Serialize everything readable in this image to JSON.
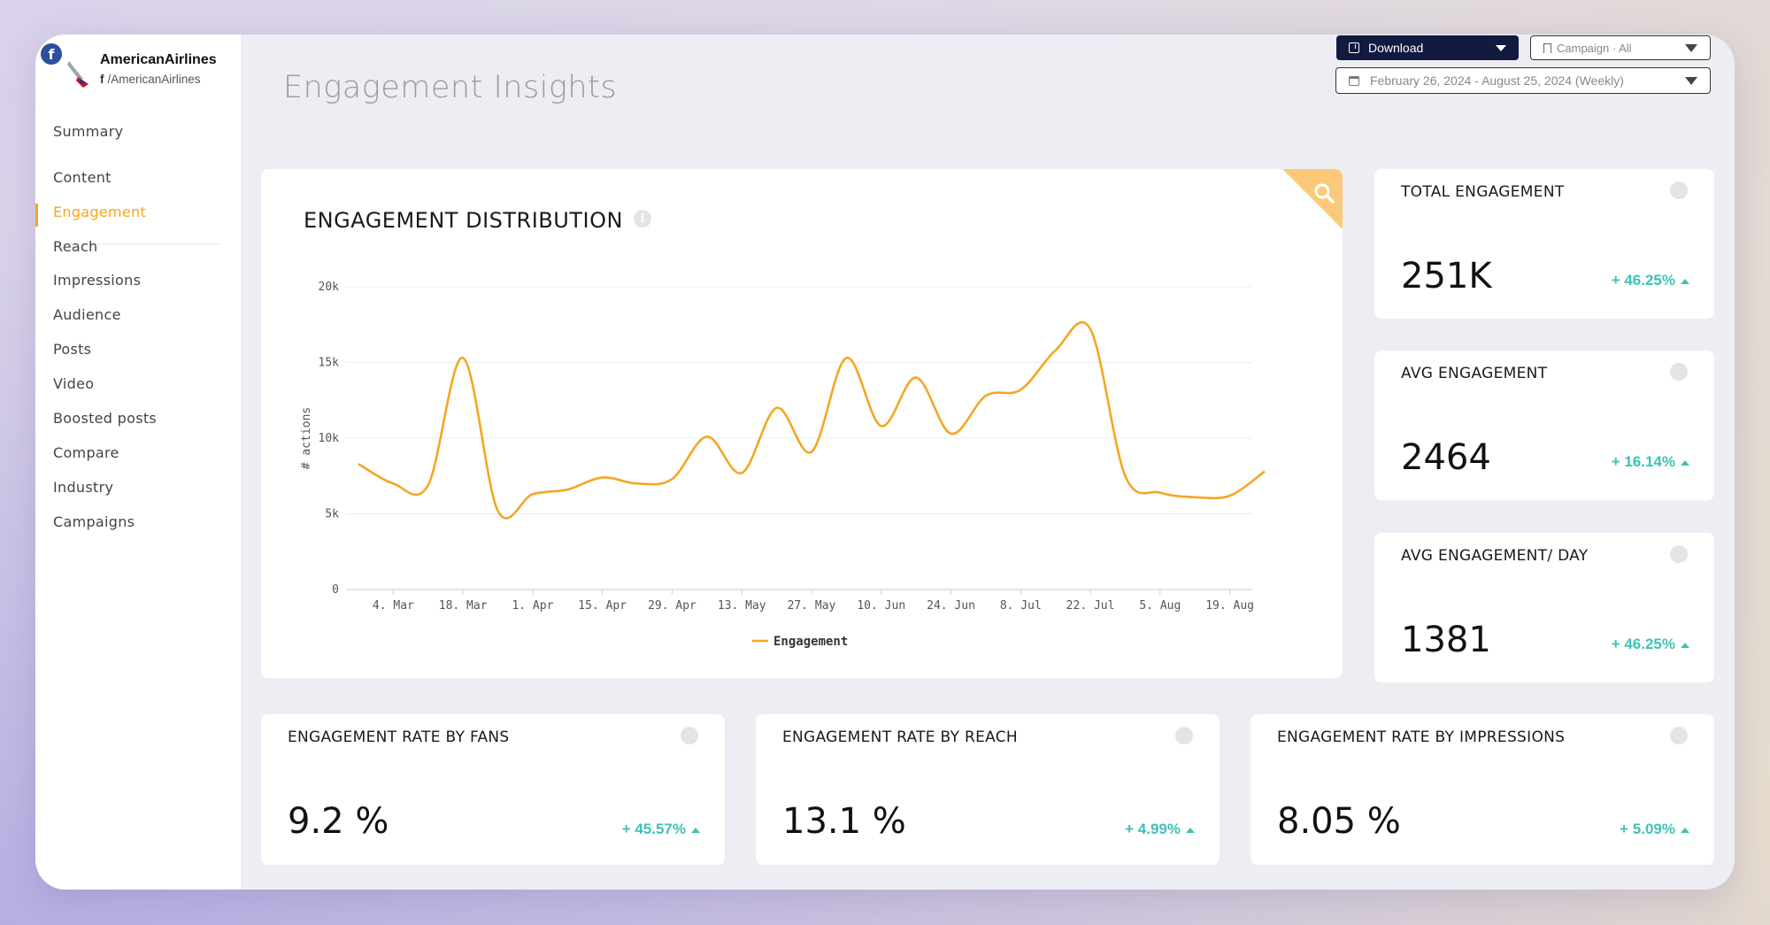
{
  "brand": {
    "name": "AmericanAirlines",
    "handle": "/AmericanAirlines",
    "fb_letter": "f"
  },
  "nav": {
    "items": [
      {
        "label": "Summary"
      },
      {
        "label": "Content"
      },
      {
        "label": "Engagement"
      },
      {
        "label": "Reach"
      },
      {
        "label": "Impressions"
      },
      {
        "label": "Audience"
      },
      {
        "label": "Posts"
      },
      {
        "label": "Video"
      },
      {
        "label": "Boosted posts"
      },
      {
        "label": "Compare"
      },
      {
        "label": "Industry"
      },
      {
        "label": "Campaigns"
      }
    ],
    "active": "Engagement"
  },
  "header": {
    "title": "Engagement Insights",
    "download_label": "Download",
    "campaign_label": "Campaign · All",
    "date_range": "February 26, 2024 - August 25, 2024 (Weekly)"
  },
  "chart": {
    "title": "ENGAGEMENT DISTRIBUTION",
    "info": "i"
  },
  "chart_data": {
    "type": "line",
    "title": "ENGAGEMENT DISTRIBUTION",
    "xlabel": "",
    "ylabel": "# actions",
    "ylim": [
      0,
      20000
    ],
    "yticks": [
      "0",
      "5k",
      "10k",
      "15k",
      "20k"
    ],
    "xticks": [
      "4. Mar",
      "18. Mar",
      "1. Apr",
      "15. Apr",
      "29. Apr",
      "13. May",
      "27. May",
      "10. Jun",
      "24. Jun",
      "8. Jul",
      "22. Jul",
      "5. Aug",
      "19. Aug"
    ],
    "x": [
      "26. Feb",
      "4. Mar",
      "11. Mar",
      "18. Mar",
      "25. Mar",
      "1. Apr",
      "8. Apr",
      "15. Apr",
      "22. Apr",
      "29. Apr",
      "6. May",
      "13. May",
      "20. May",
      "27. May",
      "3. Jun",
      "10. Jun",
      "17. Jun",
      "24. Jun",
      "1. Jul",
      "8. Jul",
      "15. Jul",
      "22. Jul",
      "29. Jul",
      "5. Aug",
      "12. Aug",
      "19. Aug",
      "26. Aug"
    ],
    "series": [
      {
        "name": "Engagement",
        "color": "#f5a623",
        "values": [
          8300,
          7000,
          6900,
          15300,
          5200,
          6300,
          6600,
          7400,
          7000,
          7300,
          10100,
          7700,
          12000,
          9100,
          15300,
          10800,
          14000,
          10300,
          12800,
          13200,
          15800,
          17200,
          7500,
          6400,
          6100,
          6200,
          7800
        ]
      }
    ],
    "legend": "bottom-center",
    "grid": true
  },
  "stats": [
    {
      "label": "TOTAL ENGAGEMENT",
      "value": "251K",
      "delta": "+ 46.25%"
    },
    {
      "label": "AVG ENGAGEMENT",
      "value": "2464",
      "delta": "+ 16.14%"
    },
    {
      "label": "AVG ENGAGEMENT/ DAY",
      "value": "1381",
      "delta": "+ 46.25%"
    },
    {
      "label": "ENGAGEMENT RATE BY FANS",
      "value": "9.2 %",
      "delta": "+ 45.57%"
    },
    {
      "label": "ENGAGEMENT RATE BY REACH",
      "value": "13.1 %",
      "delta": "+ 4.99%"
    },
    {
      "label": "ENGAGEMENT RATE BY IMPRESSIONS",
      "value": "8.05 %",
      "delta": "+ 5.09%"
    }
  ],
  "icons": {
    "search": "search-icon",
    "info": "info-icon",
    "download": "download-icon",
    "calendar": "calendar-icon",
    "bookmark": "bookmark-icon"
  },
  "colors": {
    "accent": "#f5a623",
    "positive": "#3fc2b6",
    "button_dark": "#131a40"
  }
}
